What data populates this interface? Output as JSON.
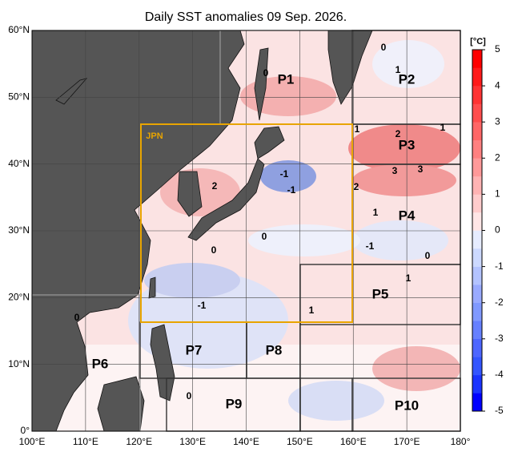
{
  "title": "Daily SST anomalies 09 Sep. 2026.",
  "lat_ticks": [
    {
      "value": 60,
      "label": "60°N"
    },
    {
      "value": 50,
      "label": "50°N"
    },
    {
      "value": 40,
      "label": "40°N"
    },
    {
      "value": 30,
      "label": "30°N"
    },
    {
      "value": 20,
      "label": "20°N"
    },
    {
      "value": 10,
      "label": "10°N"
    },
    {
      "value": 0,
      "label": "0°"
    }
  ],
  "lon_ticks": [
    {
      "value": 100,
      "label": "100°E"
    },
    {
      "value": 110,
      "label": "110°E"
    },
    {
      "value": 120,
      "label": "120°E"
    },
    {
      "value": 130,
      "label": "130°E"
    },
    {
      "value": 140,
      "label": "140°E"
    },
    {
      "value": 150,
      "label": "150°E"
    },
    {
      "value": 160,
      "label": "160°E"
    },
    {
      "value": 170,
      "label": "170°E"
    },
    {
      "value": 180,
      "label": "180°"
    }
  ],
  "lat_lim": [
    0,
    60
  ],
  "lon_lim": [
    100,
    180
  ],
  "regions": [
    "P1",
    "P2",
    "P3",
    "P4",
    "P5",
    "P6",
    "P7",
    "P8",
    "P9",
    "P10",
    "JPN"
  ],
  "contour_labels": [
    0,
    0,
    1,
    1,
    2,
    1,
    3,
    3,
    2,
    1,
    -1,
    0,
    1,
    -1,
    2,
    0,
    0,
    -1,
    1,
    0,
    -1,
    0
  ],
  "colorbar": {
    "unit": "[°C]",
    "lim": [
      -5,
      5
    ],
    "ticks": [
      5,
      4,
      3,
      2,
      1,
      0,
      -1,
      -2,
      -3,
      -4,
      -5
    ],
    "colors": [
      "#0000ff",
      "#1a33ff",
      "#3355ff",
      "#4d66ff",
      "#6680ff",
      "#8099ff",
      "#99aaff",
      "#b3c3ff",
      "#ccd9ff",
      "#e6ecff",
      "#ffe6e6",
      "#ffcccc",
      "#ffb3b3",
      "#ff9999",
      "#ff8080",
      "#ff6666",
      "#ff4d4d",
      "#ff3333",
      "#ff1a1a",
      "#ff0000"
    ]
  }
}
